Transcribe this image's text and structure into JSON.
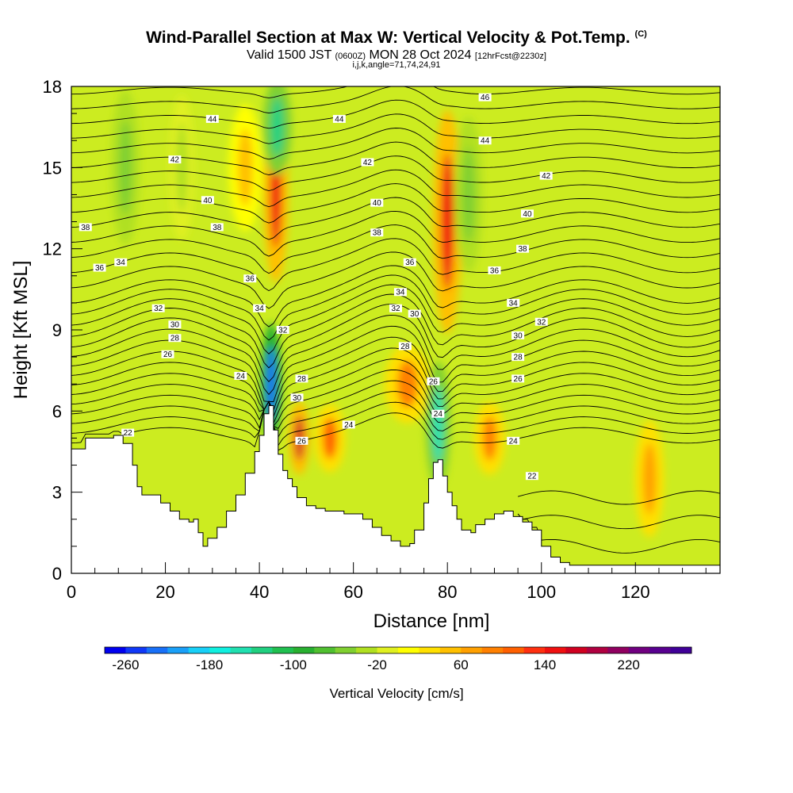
{
  "header": {
    "title": "Wind-Parallel Section at Max W: Vertical Velocity & Pot.Temp.",
    "title_unit": "(C)",
    "valid_prefix": "Valid 1500 JST",
    "valid_utc": "(0600Z)",
    "valid_date": "MON 28 Oct 2024",
    "forecast": "[12hrFcst@2230z]",
    "indices": "i,j,k,angle=71,74,24,91"
  },
  "chart_data": {
    "type": "heatmap",
    "xlabel": "Distance [nm]",
    "ylabel": "Height [Kft MSL]",
    "xlim": [
      0,
      138
    ],
    "ylim": [
      0,
      18
    ],
    "x_ticks": [
      0,
      20,
      40,
      60,
      80,
      100,
      120
    ],
    "y_ticks": [
      0,
      3,
      6,
      9,
      12,
      15,
      18
    ],
    "colorbar": {
      "label": "Vertical Velocity [cm/s]",
      "min": -280,
      "max": 280,
      "step": 20,
      "tick_labels": [
        -260,
        -180,
        -100,
        -20,
        60,
        140,
        220
      ],
      "colors": [
        "#0000f0",
        "#1038f8",
        "#1870f8",
        "#1aa0f8",
        "#18d0f8",
        "#10f0e0",
        "#20e0b0",
        "#20d080",
        "#20c050",
        "#28b030",
        "#50c030",
        "#80d030",
        "#b0e020",
        "#e0f020",
        "#ffff00",
        "#ffe000",
        "#ffc000",
        "#ffa000",
        "#ff8000",
        "#ff6000",
        "#ff3010",
        "#f01010",
        "#d00020",
        "#b00040",
        "#900060",
        "#700080",
        "#580090",
        "#400098"
      ]
    },
    "terrain": [
      [
        0,
        4.6
      ],
      [
        3,
        5.0
      ],
      [
        6,
        5.0
      ],
      [
        9,
        5.1
      ],
      [
        11,
        4.8
      ],
      [
        13,
        4.0
      ],
      [
        14,
        3.2
      ],
      [
        15,
        2.9
      ],
      [
        17,
        2.9
      ],
      [
        19,
        2.6
      ],
      [
        21,
        2.3
      ],
      [
        23,
        2.0
      ],
      [
        25,
        1.9
      ],
      [
        26,
        2.0
      ],
      [
        27,
        1.5
      ],
      [
        28,
        1.0
      ],
      [
        29,
        1.3
      ],
      [
        31,
        1.7
      ],
      [
        33,
        2.3
      ],
      [
        35,
        2.9
      ],
      [
        37,
        3.7
      ],
      [
        39,
        4.5
      ],
      [
        40,
        5.1
      ],
      [
        41,
        5.9
      ],
      [
        42,
        6.2
      ],
      [
        43,
        5.3
      ],
      [
        44,
        4.4
      ],
      [
        45,
        3.8
      ],
      [
        46,
        3.5
      ],
      [
        47,
        3.2
      ],
      [
        48,
        2.8
      ],
      [
        50,
        2.5
      ],
      [
        52,
        2.4
      ],
      [
        54,
        2.3
      ],
      [
        56,
        2.3
      ],
      [
        58,
        2.2
      ],
      [
        60,
        2.2
      ],
      [
        62,
        2.0
      ],
      [
        64,
        1.7
      ],
      [
        66,
        1.4
      ],
      [
        68,
        1.2
      ],
      [
        70,
        1.0
      ],
      [
        72,
        1.1
      ],
      [
        73,
        1.6
      ],
      [
        75,
        2.6
      ],
      [
        76,
        3.5
      ],
      [
        77,
        4.1
      ],
      [
        78,
        4.2
      ],
      [
        79,
        3.6
      ],
      [
        80,
        3.0
      ],
      [
        81,
        2.5
      ],
      [
        82,
        2.0
      ],
      [
        83,
        1.6
      ],
      [
        85,
        1.5
      ],
      [
        86,
        1.8
      ],
      [
        88,
        2.0
      ],
      [
        90,
        2.2
      ],
      [
        92,
        2.3
      ],
      [
        94,
        2.1
      ],
      [
        96,
        1.9
      ],
      [
        98,
        1.6
      ],
      [
        100,
        1.0
      ],
      [
        102,
        0.6
      ],
      [
        104,
        0.4
      ],
      [
        106,
        0.3
      ],
      [
        110,
        0.3
      ],
      [
        120,
        0.3
      ],
      [
        130,
        0.3
      ],
      [
        138,
        0.3
      ]
    ],
    "updrafts": [
      {
        "x": 43.5,
        "y": 14.0,
        "w": 1.2,
        "h": 3.6,
        "value": 140
      },
      {
        "x": 80.0,
        "y": 13.0,
        "w": 1.4,
        "h": 4.6,
        "value": 140
      },
      {
        "x": 48.5,
        "y": 5.0,
        "w": 1.0,
        "h": 1.5,
        "value": 160
      },
      {
        "x": 55.0,
        "y": 5.0,
        "w": 1.5,
        "h": 1.4,
        "value": 100
      },
      {
        "x": 71.5,
        "y": 7.0,
        "w": 2.2,
        "h": 1.6,
        "value": 80
      },
      {
        "x": 89.0,
        "y": 5.0,
        "w": 1.5,
        "h": 1.5,
        "value": 80
      },
      {
        "x": 123.0,
        "y": 3.5,
        "w": 1.4,
        "h": 2.4,
        "value": 60
      },
      {
        "x": 37.0,
        "y": 15.0,
        "w": 1.6,
        "h": 2.6,
        "value": 40
      }
    ],
    "downdrafts": [
      {
        "x": 43.8,
        "y": 16.5,
        "w": 1.4,
        "h": 2.0,
        "value": -140
      },
      {
        "x": 42.5,
        "y": 7.0,
        "w": 1.0,
        "h": 2.5,
        "value": -240
      },
      {
        "x": 78.0,
        "y": 5.5,
        "w": 1.2,
        "h": 2.6,
        "value": -160
      },
      {
        "x": 11.5,
        "y": 15.0,
        "w": 1.4,
        "h": 3.2,
        "value": -60
      },
      {
        "x": 23.5,
        "y": 15.0,
        "w": 1.2,
        "h": 3.0,
        "value": -40
      },
      {
        "x": 84.5,
        "y": 14.0,
        "w": 1.4,
        "h": 3.2,
        "value": -60
      }
    ],
    "theta_labels": [
      {
        "x": 30,
        "y": 16.8,
        "v": "44"
      },
      {
        "x": 57,
        "y": 16.8,
        "v": "44"
      },
      {
        "x": 88,
        "y": 17.6,
        "v": "46"
      },
      {
        "x": 88,
        "y": 16.0,
        "v": "44"
      },
      {
        "x": 22,
        "y": 15.3,
        "v": "42"
      },
      {
        "x": 63,
        "y": 15.2,
        "v": "42"
      },
      {
        "x": 101,
        "y": 14.7,
        "v": "42"
      },
      {
        "x": 29,
        "y": 13.8,
        "v": "40"
      },
      {
        "x": 65,
        "y": 13.7,
        "v": "40"
      },
      {
        "x": 97,
        "y": 13.3,
        "v": "40"
      },
      {
        "x": 3,
        "y": 12.8,
        "v": "38"
      },
      {
        "x": 31,
        "y": 12.8,
        "v": "38"
      },
      {
        "x": 65,
        "y": 12.6,
        "v": "38"
      },
      {
        "x": 96,
        "y": 12.0,
        "v": "38"
      },
      {
        "x": 6,
        "y": 11.3,
        "v": "36"
      },
      {
        "x": 38,
        "y": 10.9,
        "v": "36"
      },
      {
        "x": 72,
        "y": 11.5,
        "v": "36"
      },
      {
        "x": 90,
        "y": 11.2,
        "v": "36"
      },
      {
        "x": 10.5,
        "y": 11.5,
        "v": "34"
      },
      {
        "x": 40,
        "y": 9.8,
        "v": "34"
      },
      {
        "x": 70,
        "y": 10.4,
        "v": "34"
      },
      {
        "x": 94,
        "y": 10.0,
        "v": "34"
      },
      {
        "x": 18.5,
        "y": 9.8,
        "v": "32"
      },
      {
        "x": 45,
        "y": 9.0,
        "v": "32"
      },
      {
        "x": 69,
        "y": 9.8,
        "v": "32"
      },
      {
        "x": 100,
        "y": 9.3,
        "v": "32"
      },
      {
        "x": 22,
        "y": 9.2,
        "v": "30"
      },
      {
        "x": 48,
        "y": 6.5,
        "v": "30"
      },
      {
        "x": 73,
        "y": 9.6,
        "v": "30"
      },
      {
        "x": 95,
        "y": 8.8,
        "v": "30"
      },
      {
        "x": 22,
        "y": 8.7,
        "v": "28"
      },
      {
        "x": 49,
        "y": 7.2,
        "v": "28"
      },
      {
        "x": 71,
        "y": 8.4,
        "v": "28"
      },
      {
        "x": 95,
        "y": 8.0,
        "v": "28"
      },
      {
        "x": 20.5,
        "y": 8.1,
        "v": "26"
      },
      {
        "x": 49,
        "y": 4.9,
        "v": "26"
      },
      {
        "x": 77,
        "y": 7.1,
        "v": "26"
      },
      {
        "x": 95,
        "y": 7.2,
        "v": "26"
      },
      {
        "x": 36,
        "y": 7.3,
        "v": "24"
      },
      {
        "x": 59,
        "y": 5.5,
        "v": "24"
      },
      {
        "x": 78,
        "y": 5.9,
        "v": "24"
      },
      {
        "x": 94,
        "y": 4.9,
        "v": "24"
      },
      {
        "x": 12,
        "y": 5.2,
        "v": "22"
      },
      {
        "x": 98,
        "y": 3.6,
        "v": "22"
      }
    ]
  },
  "colors": {
    "background": "#ffffff",
    "ground": "#ffffff",
    "contour": "#000000"
  }
}
